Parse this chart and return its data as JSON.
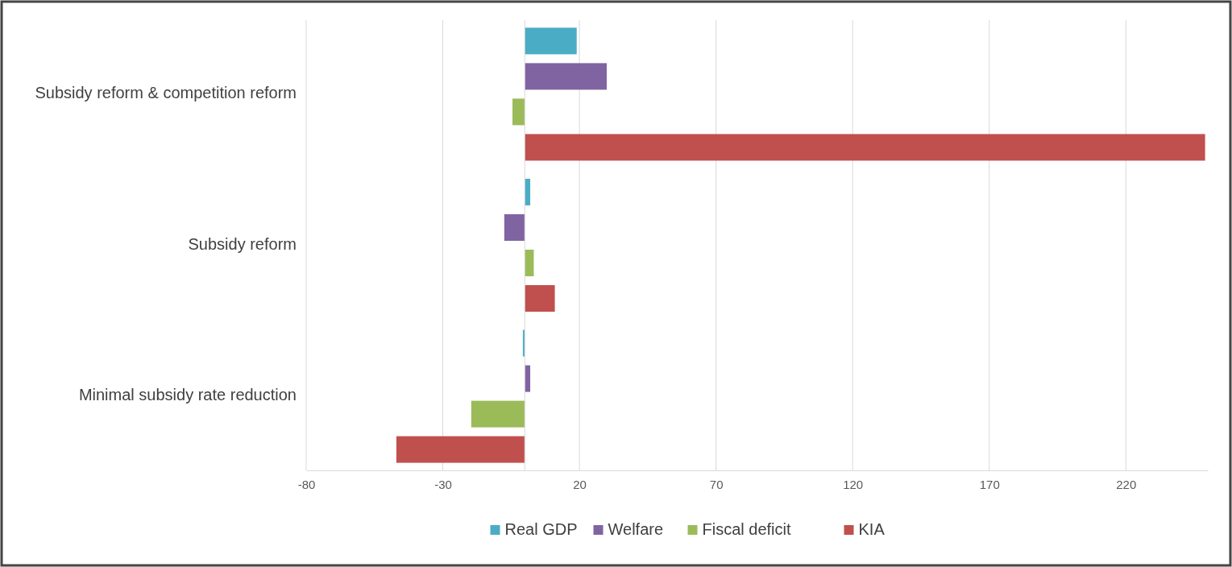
{
  "chart_data": {
    "type": "bar",
    "orientation": "horizontal",
    "categories": [
      "Subsidy reform & competition reform",
      "Subsidy reform",
      "Minimal subsidy rate reduction"
    ],
    "series": [
      {
        "name": "Real GDP",
        "color": "#4bacc6",
        "values": [
          19,
          2,
          -0.7
        ]
      },
      {
        "name": "Welfare",
        "color": "#8064a2",
        "values": [
          30,
          -7.5,
          2
        ]
      },
      {
        "name": "Fiscal deficit",
        "color": "#9bbb59",
        "values": [
          -4.5,
          3.3,
          -19.6
        ]
      },
      {
        "name": "KIA",
        "color": "#c0504d",
        "values": [
          249,
          11,
          -47
        ]
      }
    ],
    "xlim": [
      -80,
      250
    ],
    "xticks": [
      -80,
      -30,
      20,
      70,
      120,
      170,
      220
    ],
    "grid": "x",
    "legend": "bottom"
  }
}
